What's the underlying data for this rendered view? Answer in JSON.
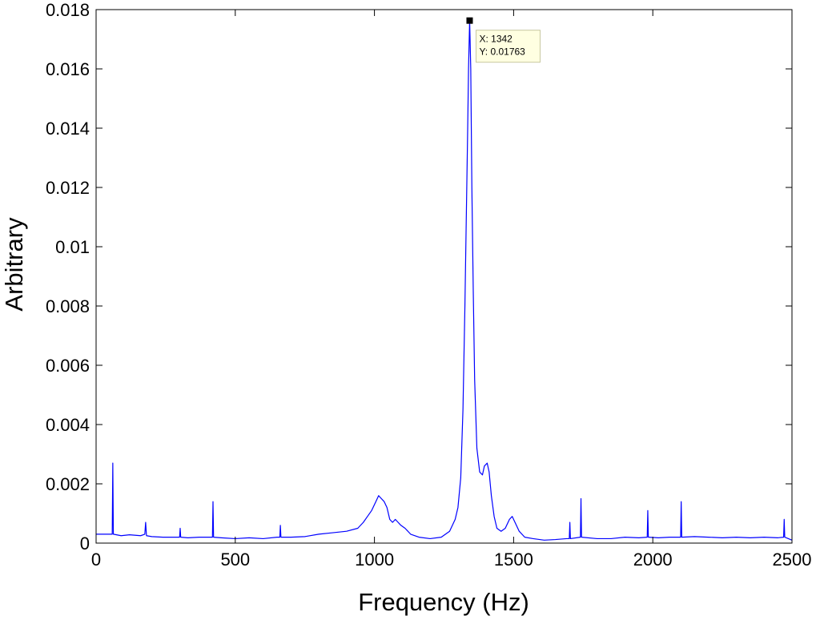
{
  "chart_data": {
    "type": "line",
    "title": "",
    "xlabel": "Frequency (Hz)",
    "ylabel": "Arbitrary",
    "xlim": [
      0,
      2500
    ],
    "ylim": [
      0,
      0.018
    ],
    "x_ticks": [
      {
        "value": 0,
        "label": "0"
      },
      {
        "value": 500,
        "label": "500"
      },
      {
        "value": 1000,
        "label": "1000"
      },
      {
        "value": 1500,
        "label": "1500"
      },
      {
        "value": 2000,
        "label": "2000"
      },
      {
        "value": 2500,
        "label": "2500"
      }
    ],
    "y_ticks": [
      {
        "value": 0,
        "label": "0"
      },
      {
        "value": 0.002,
        "label": "0.002"
      },
      {
        "value": 0.004,
        "label": "0.004"
      },
      {
        "value": 0.006,
        "label": "0.006"
      },
      {
        "value": 0.008,
        "label": "0.008"
      },
      {
        "value": 0.01,
        "label": "0.01"
      },
      {
        "value": 0.012,
        "label": "0.012"
      },
      {
        "value": 0.014,
        "label": "0.014"
      },
      {
        "value": 0.016,
        "label": "0.016"
      },
      {
        "value": 0.018,
        "label": "0.018"
      }
    ],
    "grid": false,
    "series": [
      {
        "color": "#0000ff",
        "x": [
          0,
          30,
          58,
          60,
          62,
          90,
          120,
          160,
          175,
          178,
          181,
          200,
          240,
          280,
          300,
          302,
          304,
          330,
          370,
          400,
          418,
          420,
          422,
          450,
          500,
          550,
          600,
          650,
          660,
          662,
          664,
          700,
          750,
          800,
          850,
          900,
          940,
          960,
          975,
          990,
          1005,
          1015,
          1025,
          1035,
          1045,
          1055,
          1065,
          1075,
          1085,
          1095,
          1110,
          1130,
          1160,
          1200,
          1240,
          1270,
          1290,
          1300,
          1310,
          1318,
          1325,
          1330,
          1335,
          1338,
          1342,
          1346,
          1350,
          1355,
          1360,
          1368,
          1378,
          1388,
          1395,
          1405,
          1412,
          1420,
          1430,
          1440,
          1455,
          1470,
          1485,
          1495,
          1505,
          1520,
          1540,
          1570,
          1610,
          1650,
          1690,
          1700,
          1702,
          1704,
          1740,
          1742,
          1744,
          1800,
          1850,
          1900,
          1950,
          1980,
          1982,
          1984,
          2020,
          2060,
          2100,
          2102,
          2104,
          2150,
          2200,
          2250,
          2300,
          2350,
          2400,
          2450,
          2470,
          2472,
          2474,
          2500
        ],
        "y": [
          0.0003,
          0.0003,
          0.0003,
          0.0027,
          0.0003,
          0.00025,
          0.00028,
          0.00025,
          0.0003,
          0.0007,
          0.00025,
          0.00022,
          0.0002,
          0.0002,
          0.0002,
          0.0005,
          0.0002,
          0.00018,
          0.0002,
          0.0002,
          0.0002,
          0.0014,
          0.0002,
          0.00018,
          0.00015,
          0.00018,
          0.00015,
          0.0002,
          0.0002,
          0.0006,
          0.0002,
          0.0002,
          0.00022,
          0.0003,
          0.00035,
          0.0004,
          0.0005,
          0.0007,
          0.0009,
          0.0011,
          0.0014,
          0.0016,
          0.0015,
          0.0014,
          0.0012,
          0.0008,
          0.0007,
          0.0008,
          0.0007,
          0.0006,
          0.0005,
          0.0003,
          0.0002,
          0.00015,
          0.0002,
          0.0004,
          0.0008,
          0.0012,
          0.0022,
          0.0045,
          0.008,
          0.011,
          0.014,
          0.016,
          0.01763,
          0.016,
          0.012,
          0.0085,
          0.0055,
          0.0032,
          0.0024,
          0.0023,
          0.0026,
          0.0027,
          0.0024,
          0.0016,
          0.0009,
          0.0005,
          0.0004,
          0.0005,
          0.0008,
          0.0009,
          0.0007,
          0.0004,
          0.0002,
          0.00015,
          0.0001,
          0.00012,
          0.00015,
          0.00015,
          0.0007,
          0.00015,
          0.0002,
          0.0015,
          0.0002,
          0.00015,
          0.00015,
          0.0002,
          0.00018,
          0.0002,
          0.0011,
          0.0002,
          0.00018,
          0.0002,
          0.0002,
          0.0014,
          0.0002,
          0.00022,
          0.0002,
          0.00018,
          0.0002,
          0.00018,
          0.0002,
          0.00018,
          0.0002,
          0.0008,
          0.0002,
          0.0001
        ]
      }
    ],
    "datatip": {
      "x": 1342,
      "y": 0.01763,
      "x_text": "X: 1342",
      "y_text": "Y: 0.01763"
    }
  }
}
